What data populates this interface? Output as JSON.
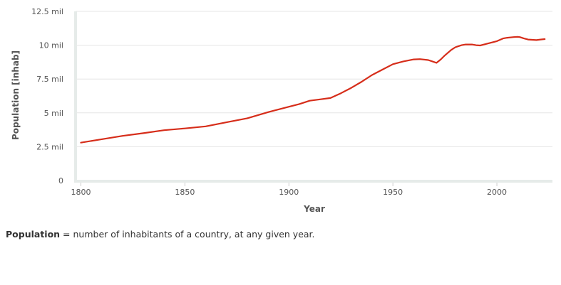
{
  "chart_data": {
    "type": "line",
    "title": "",
    "xlabel": "Year",
    "ylabel": "Population [inhab]",
    "xlim": [
      1800,
      2025
    ],
    "ylim": [
      0,
      12.5
    ],
    "x_ticks": [
      1800,
      1850,
      1900,
      1950,
      2000
    ],
    "y_ticks": [
      {
        "value": 0,
        "label": "0"
      },
      {
        "value": 2.5,
        "label": "2.5 mil"
      },
      {
        "value": 5,
        "label": "5 mil"
      },
      {
        "value": 7.5,
        "label": "7.5 mil"
      },
      {
        "value": 10,
        "label": "10 mil"
      },
      {
        "value": 12.5,
        "label": "12.5 mil"
      }
    ],
    "grid": true,
    "series": [
      {
        "name": "Population",
        "unit": "million inhabitants",
        "color": "#d62d1a",
        "x": [
          1800,
          1810,
          1820,
          1830,
          1840,
          1850,
          1860,
          1870,
          1880,
          1890,
          1900,
          1905,
          1910,
          1915,
          1920,
          1925,
          1930,
          1935,
          1940,
          1945,
          1950,
          1955,
          1960,
          1963,
          1967,
          1969,
          1971,
          1973,
          1975,
          1978,
          1980,
          1983,
          1985,
          1988,
          1990,
          1992,
          1995,
          2000,
          2003,
          2005,
          2008,
          2010,
          2011,
          2013,
          2015,
          2017,
          2019,
          2021,
          2023
        ],
        "values": [
          2.8,
          3.05,
          3.3,
          3.5,
          3.72,
          3.85,
          4.0,
          4.3,
          4.6,
          5.05,
          5.45,
          5.65,
          5.9,
          6.0,
          6.1,
          6.45,
          6.85,
          7.3,
          7.8,
          8.2,
          8.6,
          8.8,
          8.95,
          8.97,
          8.9,
          8.8,
          8.7,
          8.95,
          9.25,
          9.65,
          9.85,
          10.0,
          10.05,
          10.05,
          10.0,
          9.98,
          10.1,
          10.3,
          10.5,
          10.55,
          10.6,
          10.62,
          10.6,
          10.5,
          10.42,
          10.4,
          10.38,
          10.42,
          10.45
        ]
      }
    ]
  },
  "caption": {
    "term": "Population",
    "definition": " = number of inhabitants of a country, at any given year."
  }
}
